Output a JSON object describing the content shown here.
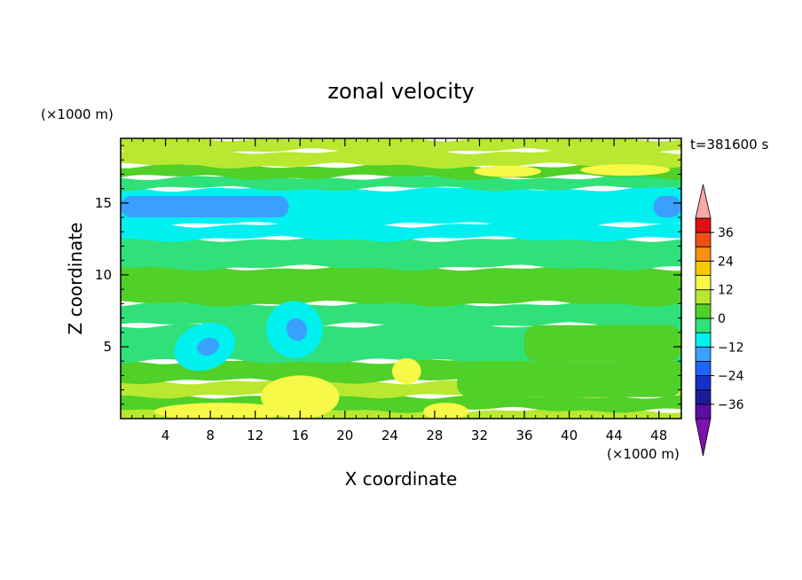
{
  "chart_data": {
    "type": "heatmap",
    "title": "zonal velocity",
    "xlabel": "X coordinate",
    "ylabel": "Z coordinate",
    "x_unit": "(×1000 m)",
    "y_unit": "(×1000 m)",
    "time_label": "t=381600 s",
    "xlim": [
      0,
      50
    ],
    "ylim": [
      0,
      19.5
    ],
    "x_ticks": [
      4,
      8,
      12,
      16,
      20,
      24,
      28,
      32,
      36,
      40,
      44,
      48
    ],
    "y_ticks": [
      5,
      10,
      15
    ],
    "colorbar": {
      "levels": [
        -42,
        -36,
        -30,
        -24,
        -18,
        -12,
        -6,
        0,
        6,
        12,
        18,
        24,
        30,
        36,
        42
      ],
      "tick_labels": [
        "36",
        "24",
        "12",
        "0",
        "−12",
        "−24",
        "−36"
      ],
      "tick_values": [
        36,
        24,
        12,
        0,
        -12,
        -24,
        -36
      ],
      "colors": [
        "#5a0fa0",
        "#1c1c9a",
        "#1432c8",
        "#1e64ff",
        "#3aa0ff",
        "#00f0f0",
        "#30e078",
        "#50d028",
        "#b8e830",
        "#f8f848",
        "#f8c800",
        "#f89010",
        "#f05018",
        "#e01010"
      ],
      "over_color": "#f8a8a8",
      "under_color": "#8010b0"
    },
    "field": {
      "description_free": true,
      "regions": [
        {
          "z": [
            0,
            0.6
          ],
          "u": 9
        },
        {
          "z": [
            0.6,
            1.6
          ],
          "u": 3
        },
        {
          "z": [
            1.6,
            2.6
          ],
          "u": 9
        },
        {
          "z": [
            2.6,
            4.0
          ],
          "u": 2
        },
        {
          "z": [
            4.0,
            6.5
          ],
          "u": -4
        },
        {
          "z": [
            6.5,
            8.0
          ],
          "u": -2
        },
        {
          "z": [
            8.0,
            10.5
          ],
          "u": 1
        },
        {
          "z": [
            10.5,
            12.5
          ],
          "u": -4
        },
        {
          "z": [
            12.5,
            13.5
          ],
          "u": -8
        },
        {
          "z": [
            13.5,
            16.0
          ],
          "u": -10
        },
        {
          "z": [
            16.0,
            16.8
          ],
          "u": -3
        },
        {
          "z": [
            16.8,
            17.6
          ],
          "u": 2
        },
        {
          "z": [
            17.6,
            18.6
          ],
          "u": 8
        },
        {
          "z": [
            18.6,
            19.5
          ],
          "u": 11
        }
      ],
      "features": [
        {
          "type": "jet",
          "x": [
            0,
            15
          ],
          "z": [
            14.0,
            15.5
          ],
          "u": -16
        },
        {
          "type": "jet",
          "x": [
            47.5,
            50
          ],
          "z": [
            14.0,
            15.5
          ],
          "u": -16
        },
        {
          "type": "eddy",
          "x": 7.5,
          "z": 5.0,
          "rx": 2.8,
          "rz": 1.6,
          "u": -12
        },
        {
          "type": "eddy",
          "x": 7.8,
          "z": 5.0,
          "rx": 1.0,
          "rz": 0.6,
          "u": -16
        },
        {
          "type": "eddy",
          "x": 15.5,
          "z": 6.2,
          "rx": 2.5,
          "rz": 2.0,
          "u": -12
        },
        {
          "type": "eddy",
          "x": 15.7,
          "z": 6.2,
          "rx": 0.9,
          "rz": 0.8,
          "u": -16
        },
        {
          "type": "pos",
          "x": 16,
          "z": 1.5,
          "rx": 3.5,
          "rz": 1.5,
          "u": 12
        },
        {
          "type": "pos",
          "x": 25.5,
          "z": 3.3,
          "rx": 1.3,
          "rz": 0.9,
          "u": 14
        },
        {
          "type": "pos",
          "x": 9,
          "z": 0.5,
          "rx": 6,
          "rz": 0.6,
          "u": 12
        },
        {
          "type": "pos",
          "x": 29,
          "z": 0.5,
          "rx": 2,
          "rz": 0.6,
          "u": 12
        },
        {
          "type": "pos",
          "x": 34.5,
          "z": 17.2,
          "rx": 3,
          "rz": 0.4,
          "u": 12
        },
        {
          "type": "pos",
          "x": 45,
          "z": 17.3,
          "rx": 4,
          "rz": 0.4,
          "u": 12
        },
        {
          "type": "band",
          "x": [
            30,
            50
          ],
          "z": [
            1.5,
            4.0
          ],
          "u": 3
        },
        {
          "type": "band",
          "x": [
            36,
            50
          ],
          "z": [
            4.0,
            6.5
          ],
          "u": 1
        }
      ]
    }
  }
}
